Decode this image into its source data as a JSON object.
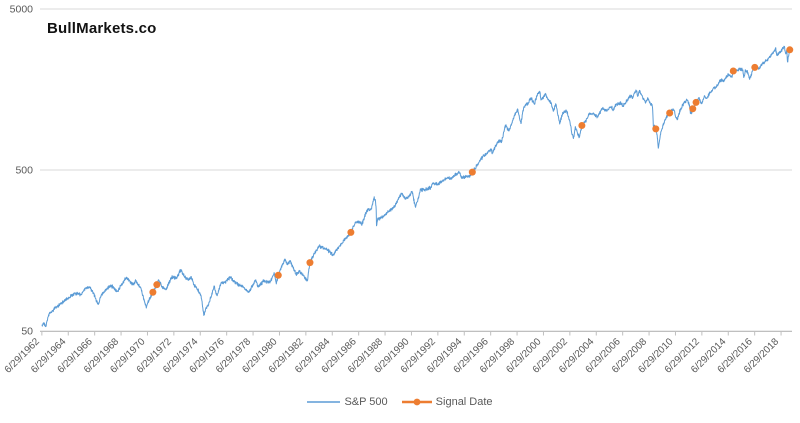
{
  "header": {
    "title": "BullMarkets.co"
  },
  "chart_data": {
    "type": "line",
    "title": "BullMarkets.co",
    "grid": "horizontal-only",
    "legend_position": "bottom-center",
    "x_axis": {
      "kind": "date",
      "tick_interval_years": 2,
      "tick_labels": [
        "6/29/1962",
        "6/29/1964",
        "6/29/1966",
        "6/29/1968",
        "6/29/1970",
        "6/29/1972",
        "6/29/1974",
        "6/29/1976",
        "6/29/1978",
        "6/29/1980",
        "6/29/1982",
        "6/29/1984",
        "6/29/1986",
        "6/29/1988",
        "6/29/1990",
        "6/29/1992",
        "6/29/1994",
        "6/29/1996",
        "6/29/1998",
        "6/29/2000",
        "6/29/2002",
        "6/29/2004",
        "6/29/2006",
        "6/29/2008",
        "6/29/2010",
        "6/29/2012",
        "6/29/2014",
        "6/29/2016",
        "6/29/2018"
      ],
      "range_years": [
        1962.4,
        2019.3
      ]
    },
    "y_axis": {
      "scale": "log",
      "ticks": [
        50,
        500,
        5000
      ],
      "min": 50,
      "max": 5000
    },
    "series": [
      {
        "name": "S&P 500",
        "type": "line",
        "color": "#5B9BD5",
        "anchors": [
          [
            1962.5,
            54.8
          ],
          [
            1962.62,
            56
          ],
          [
            1962.8,
            53.5
          ],
          [
            1963.0,
            63
          ],
          [
            1963.5,
            69.5
          ],
          [
            1964.0,
            75
          ],
          [
            1964.5,
            80
          ],
          [
            1965.0,
            86
          ],
          [
            1965.45,
            84
          ],
          [
            1965.8,
            92
          ],
          [
            1966.1,
            93.8
          ],
          [
            1966.4,
            86
          ],
          [
            1966.6,
            77
          ],
          [
            1966.78,
            73.5
          ],
          [
            1967.0,
            84
          ],
          [
            1967.4,
            91
          ],
          [
            1967.7,
            96.5
          ],
          [
            1968.2,
            88
          ],
          [
            1968.9,
            108
          ],
          [
            1969.4,
            97
          ],
          [
            1969.6,
            102
          ],
          [
            1970.0,
            92
          ],
          [
            1970.4,
            69.5
          ],
          [
            1970.6,
            78
          ],
          [
            1970.9,
            87
          ],
          [
            1971.2,
            97
          ],
          [
            1971.33,
            104
          ],
          [
            1971.6,
            94
          ],
          [
            1971.9,
            90.5
          ],
          [
            1972.3,
            108
          ],
          [
            1972.7,
            107
          ],
          [
            1973.02,
            120
          ],
          [
            1973.3,
            108
          ],
          [
            1973.6,
            104
          ],
          [
            1973.8,
            109
          ],
          [
            1974.0,
            97
          ],
          [
            1974.3,
            90
          ],
          [
            1974.55,
            83
          ],
          [
            1974.76,
            62.5
          ],
          [
            1974.9,
            69
          ],
          [
            1975.1,
            72
          ],
          [
            1975.55,
            95
          ],
          [
            1975.75,
            83
          ],
          [
            1976.1,
            100
          ],
          [
            1976.4,
            101
          ],
          [
            1976.75,
            107.5
          ],
          [
            1977.2,
            99
          ],
          [
            1977.8,
            93
          ],
          [
            1978.18,
            87
          ],
          [
            1978.7,
            104
          ],
          [
            1978.85,
            94
          ],
          [
            1979.3,
            102
          ],
          [
            1979.8,
            101
          ],
          [
            1980.1,
            114
          ],
          [
            1980.25,
            98
          ],
          [
            1980.4,
            111
          ],
          [
            1980.9,
            140
          ],
          [
            1981.1,
            129
          ],
          [
            1981.3,
            136
          ],
          [
            1981.75,
            112
          ],
          [
            1982.0,
            117
          ],
          [
            1982.3,
            111
          ],
          [
            1982.6,
            102.4
          ],
          [
            1982.8,
            133
          ],
          [
            1983.0,
            145
          ],
          [
            1983.5,
            168
          ],
          [
            1983.9,
            164
          ],
          [
            1984.2,
            157
          ],
          [
            1984.55,
            148
          ],
          [
            1985.0,
            167
          ],
          [
            1985.5,
            188
          ],
          [
            1985.9,
            205
          ],
          [
            1986.25,
            238
          ],
          [
            1986.55,
            236
          ],
          [
            1986.75,
            231
          ],
          [
            1987.1,
            280
          ],
          [
            1987.45,
            288
          ],
          [
            1987.65,
            335
          ],
          [
            1987.75,
            328
          ],
          [
            1987.82,
            283
          ],
          [
            1987.84,
            225
          ],
          [
            1987.92,
            245
          ],
          [
            1988.1,
            250
          ],
          [
            1988.4,
            258
          ],
          [
            1988.8,
            278
          ],
          [
            1989.2,
            295
          ],
          [
            1989.6,
            345
          ],
          [
            1989.8,
            358
          ],
          [
            1990.05,
            330
          ],
          [
            1990.3,
            340
          ],
          [
            1990.54,
            368
          ],
          [
            1990.78,
            296
          ],
          [
            1991.0,
            330
          ],
          [
            1991.15,
            375
          ],
          [
            1991.5,
            378
          ],
          [
            1991.96,
            388
          ],
          [
            1992.1,
            415
          ],
          [
            1992.5,
            408
          ],
          [
            1993.0,
            435
          ],
          [
            1993.5,
            448
          ],
          [
            1994.1,
            482
          ],
          [
            1994.3,
            446
          ],
          [
            1994.7,
            455
          ],
          [
            1994.95,
            460
          ],
          [
            1995.1,
            485
          ],
          [
            1995.5,
            540
          ],
          [
            1995.95,
            615
          ],
          [
            1996.3,
            645
          ],
          [
            1996.55,
            670
          ],
          [
            1996.6,
            630
          ],
          [
            1997.0,
            745
          ],
          [
            1997.25,
            760
          ],
          [
            1997.3,
            740
          ],
          [
            1997.6,
            950
          ],
          [
            1997.85,
            875
          ],
          [
            1998.1,
            980
          ],
          [
            1998.3,
            1100
          ],
          [
            1998.55,
            1185
          ],
          [
            1998.65,
            1090
          ],
          [
            1998.78,
            972
          ],
          [
            1999.0,
            1230
          ],
          [
            1999.3,
            1300
          ],
          [
            1999.55,
            1400
          ],
          [
            1999.8,
            1280
          ],
          [
            2000.0,
            1455
          ],
          [
            2000.22,
            1527
          ],
          [
            2000.3,
            1360
          ],
          [
            2000.65,
            1480
          ],
          [
            2000.9,
            1350
          ],
          [
            2001.05,
            1320
          ],
          [
            2001.25,
            1160
          ],
          [
            2001.42,
            1290
          ],
          [
            2001.72,
            966
          ],
          [
            2001.95,
            1140
          ],
          [
            2002.25,
            1165
          ],
          [
            2002.5,
            990
          ],
          [
            2002.6,
            880
          ],
          [
            2002.76,
            785
          ],
          [
            2002.9,
            930
          ],
          [
            2003.05,
            860
          ],
          [
            2003.22,
            800
          ],
          [
            2003.4,
            945
          ],
          [
            2003.7,
            1010
          ],
          [
            2004.0,
            1130
          ],
          [
            2004.3,
            1110
          ],
          [
            2004.6,
            1075
          ],
          [
            2004.95,
            1210
          ],
          [
            2005.3,
            1160
          ],
          [
            2005.6,
            1235
          ],
          [
            2005.8,
            1180
          ],
          [
            2006.0,
            1280
          ],
          [
            2006.35,
            1310
          ],
          [
            2006.5,
            1240
          ],
          [
            2007.0,
            1420
          ],
          [
            2007.17,
            1450
          ],
          [
            2007.22,
            1390
          ],
          [
            2007.42,
            1530
          ],
          [
            2007.55,
            1553
          ],
          [
            2007.63,
            1433
          ],
          [
            2007.78,
            1562
          ],
          [
            2008.0,
            1420
          ],
          [
            2008.2,
            1320
          ],
          [
            2008.4,
            1400
          ],
          [
            2008.6,
            1280
          ],
          [
            2008.73,
            1250
          ],
          [
            2008.78,
            1100
          ],
          [
            2008.83,
            900
          ],
          [
            2008.9,
            950
          ],
          [
            2008.95,
            880
          ],
          [
            2009.0,
            900
          ],
          [
            2009.1,
            830
          ],
          [
            2009.19,
            683
          ],
          [
            2009.4,
            870
          ],
          [
            2009.7,
            1030
          ],
          [
            2009.9,
            1100
          ],
          [
            2010.05,
            1130
          ],
          [
            2010.3,
            1200
          ],
          [
            2010.37,
            1180
          ],
          [
            2010.5,
            1070
          ],
          [
            2010.62,
            1025
          ],
          [
            2010.85,
            1180
          ],
          [
            2011.15,
            1310
          ],
          [
            2011.35,
            1360
          ],
          [
            2011.55,
            1270
          ],
          [
            2011.62,
            1120
          ],
          [
            2011.75,
            1155
          ],
          [
            2011.8,
            1200
          ],
          [
            2011.92,
            1240
          ],
          [
            2012.05,
            1315
          ],
          [
            2012.28,
            1410
          ],
          [
            2012.45,
            1290
          ],
          [
            2012.7,
            1430
          ],
          [
            2012.87,
            1390
          ],
          [
            2013.0,
            1460
          ],
          [
            2013.4,
            1630
          ],
          [
            2013.5,
            1610
          ],
          [
            2013.9,
            1800
          ],
          [
            2014.1,
            1780
          ],
          [
            2014.5,
            1960
          ],
          [
            2014.78,
            1885
          ],
          [
            2014.87,
            2060
          ],
          [
            2015.0,
            2050
          ],
          [
            2015.4,
            2120
          ],
          [
            2015.6,
            2090
          ],
          [
            2015.66,
            1880
          ],
          [
            2015.8,
            2080
          ],
          [
            2015.95,
            2040
          ],
          [
            2016.1,
            1830
          ],
          [
            2016.35,
            2080
          ],
          [
            2016.5,
            2170
          ],
          [
            2016.85,
            2130
          ],
          [
            2017.0,
            2270
          ],
          [
            2017.5,
            2430
          ],
          [
            2018.0,
            2750
          ],
          [
            2018.07,
            2872
          ],
          [
            2018.16,
            2580
          ],
          [
            2018.35,
            2650
          ],
          [
            2018.74,
            2930
          ],
          [
            2018.85,
            2630
          ],
          [
            2018.93,
            2750
          ],
          [
            2018.98,
            2350
          ],
          [
            2019.05,
            2550
          ],
          [
            2019.15,
            2790
          ]
        ]
      },
      {
        "name": "Signal Date",
        "type": "scatter",
        "color": "#ED7D31",
        "points": [
          {
            "year": 1970.9,
            "value": 87
          },
          {
            "year": 1971.2,
            "value": 97
          },
          {
            "year": 1980.4,
            "value": 111
          },
          {
            "year": 1982.8,
            "value": 133
          },
          {
            "year": 1985.9,
            "value": 205
          },
          {
            "year": 1995.1,
            "value": 485
          },
          {
            "year": 2003.4,
            "value": 945
          },
          {
            "year": 2009.0,
            "value": 900
          },
          {
            "year": 2010.05,
            "value": 1130
          },
          {
            "year": 2011.8,
            "value": 1200
          },
          {
            "year": 2012.05,
            "value": 1315
          },
          {
            "year": 2014.87,
            "value": 2060
          },
          {
            "year": 2016.5,
            "value": 2170
          },
          {
            "year": 2019.15,
            "value": 2790
          }
        ]
      }
    ],
    "legend": [
      {
        "label": "S&P 500",
        "color": "#5B9BD5",
        "marker": "line"
      },
      {
        "label": "Signal Date",
        "color": "#ED7D31",
        "marker": "line-dot"
      }
    ]
  },
  "colors": {
    "sp500_line": "#5B9BD5",
    "signal_marker": "#ED7D31",
    "gridline": "#D9D9D9",
    "axis_line": "#BFBFBF",
    "axis_text": "#595959",
    "title_text": "#121212",
    "background": "#FFFFFF"
  }
}
